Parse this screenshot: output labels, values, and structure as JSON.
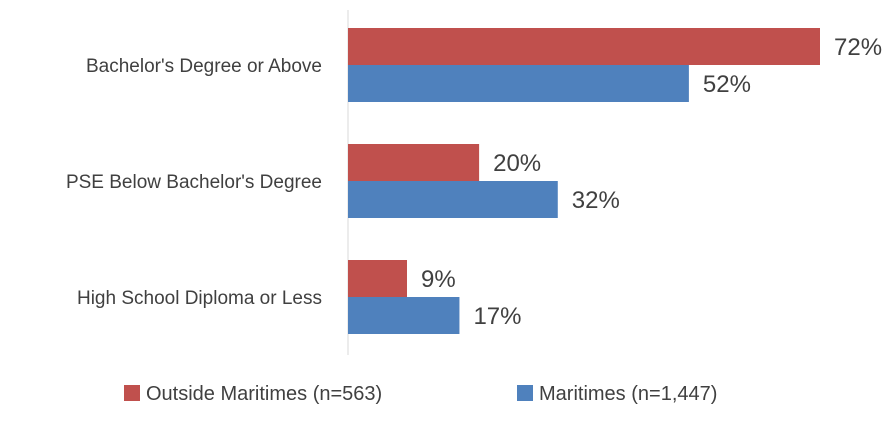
{
  "chart_data": {
    "type": "bar",
    "orientation": "horizontal",
    "categories": [
      "Bachelor's Degree or Above",
      "PSE Below Bachelor's Degree",
      "High School Diploma or Less"
    ],
    "series": [
      {
        "name": "Outside Maritimes (n=563)",
        "color": "#C0504D",
        "values": [
          72,
          20,
          9
        ],
        "labels": [
          "72%",
          "20%",
          "9%"
        ]
      },
      {
        "name": "Maritimes (n=1,447)",
        "color": "#4F81BD",
        "values": [
          52,
          32,
          17
        ],
        "labels": [
          "52%",
          "32%",
          "17%"
        ]
      }
    ],
    "unit": "%",
    "xlim": [
      0,
      72
    ],
    "grid": false,
    "legend": "bottom"
  }
}
